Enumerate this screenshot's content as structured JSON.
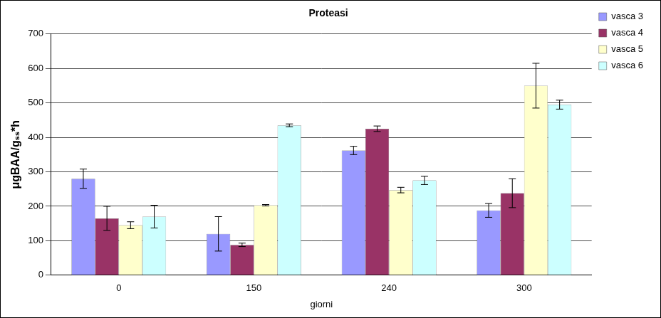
{
  "chart_data": {
    "type": "bar",
    "title": "Proteasi",
    "x_label": "giorni",
    "y_label": "μgBAA/gₛₛ*h",
    "categories": [
      "0",
      "150",
      "240",
      "300"
    ],
    "series": [
      {
        "name": "vasca 3",
        "color": "#9999ff",
        "values": [
          280,
          120,
          362,
          188
        ],
        "errors": [
          28,
          50,
          12,
          20
        ]
      },
      {
        "name": "vasca 4",
        "color": "#993366",
        "values": [
          165,
          88,
          425,
          238
        ],
        "errors": [
          35,
          5,
          8,
          42
        ]
      },
      {
        "name": "vasca 5",
        "color": "#ffffcc",
        "values": [
          145,
          203,
          247,
          550
        ],
        "errors": [
          10,
          2,
          8,
          65
        ]
      },
      {
        "name": "vasca 6",
        "color": "#ccffff",
        "values": [
          170,
          435,
          275,
          495
        ],
        "errors": [
          33,
          4,
          12,
          13
        ]
      }
    ],
    "ylim": [
      0,
      700
    ],
    "yticks": [
      0,
      100,
      200,
      300,
      400,
      500,
      600,
      700
    ],
    "grid": true,
    "legend": "right"
  }
}
